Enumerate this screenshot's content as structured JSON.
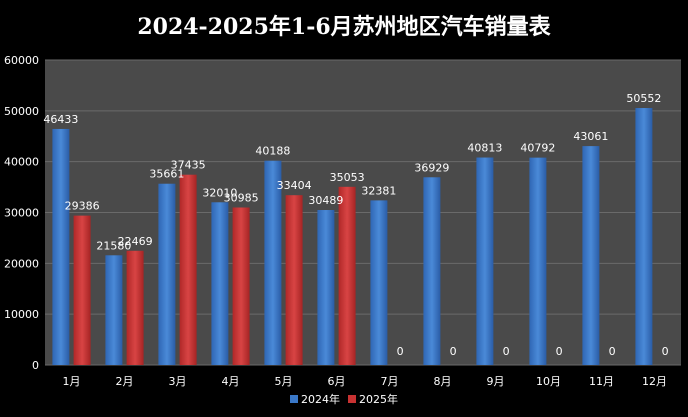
{
  "chart_data": {
    "type": "bar",
    "title": "2024-2025年1-6月苏州地区汽车销量表",
    "categories": [
      "1月",
      "2月",
      "3月",
      "4月",
      "5月",
      "6月",
      "7月",
      "8月",
      "9月",
      "10月",
      "11月",
      "12月"
    ],
    "series": [
      {
        "name": "2024年",
        "color": "#3a78c8",
        "values": [
          46433,
          21580,
          35661,
          32010,
          40188,
          30489,
          32381,
          36929,
          40813,
          40792,
          43061,
          50552
        ]
      },
      {
        "name": "2025年",
        "color": "#c83232",
        "values": [
          29386,
          22469,
          37435,
          30985,
          33404,
          35053,
          0,
          0,
          0,
          0,
          0,
          0
        ]
      }
    ],
    "ylim": [
      0,
      60000
    ],
    "yticks": [
      "0",
      "10000",
      "20000",
      "30000",
      "40000",
      "50000",
      "60000"
    ],
    "grid": true,
    "legend": "bottom",
    "data_labels": true
  }
}
